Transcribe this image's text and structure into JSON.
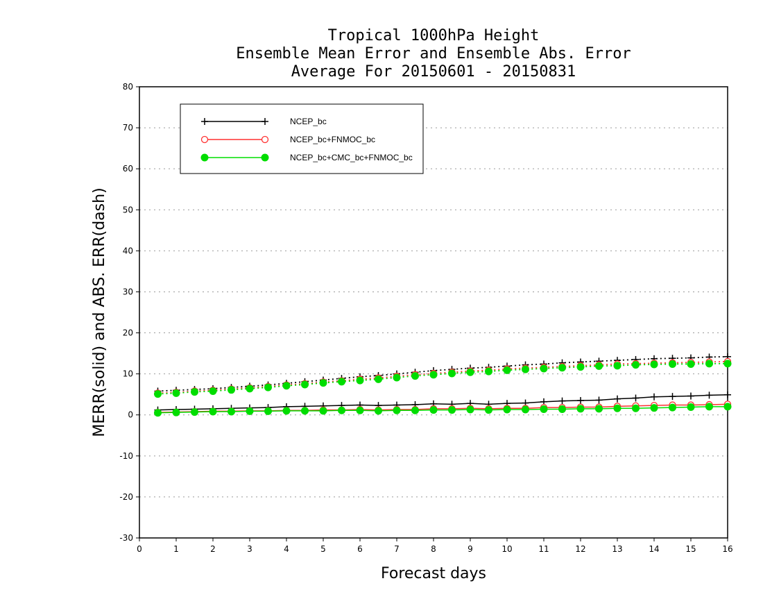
{
  "chart_data": {
    "type": "line",
    "title_lines": [
      "Tropical 1000hPa Height",
      "Ensemble Mean Error and Ensemble Abs. Error",
      "Average For 20150601 - 20150831"
    ],
    "xlabel": "Forecast days",
    "ylabel": "MERR(solid) and ABS. ERR(dash)",
    "xlim": [
      0,
      16
    ],
    "ylim": [
      -30,
      80
    ],
    "xticks": [
      "0",
      "1",
      "2",
      "3",
      "4",
      "5",
      "6",
      "7",
      "8",
      "9",
      "10",
      "11",
      "12",
      "13",
      "14",
      "15",
      "16"
    ],
    "yticks": [
      "80",
      "70",
      "60",
      "50",
      "40",
      "30",
      "20",
      "10",
      "0",
      "-10",
      "-20",
      "-30"
    ],
    "grid": "horizontal dotted",
    "legend_position": "top-left",
    "x": [
      0.5,
      1,
      1.5,
      2,
      2.5,
      3,
      3.5,
      4,
      4.5,
      5,
      5.5,
      6,
      6.5,
      7,
      7.5,
      8,
      8.5,
      9,
      9.5,
      10,
      10.5,
      11,
      11.5,
      12,
      12.5,
      13,
      13.5,
      14,
      14.5,
      15,
      15.5,
      16
    ],
    "series": [
      {
        "name": "NCEP_bc",
        "color": "#000000",
        "marker": "plus",
        "merr": [
          1.2,
          1.3,
          1.4,
          1.5,
          1.6,
          1.7,
          1.8,
          2.0,
          2.1,
          2.2,
          2.3,
          2.4,
          2.3,
          2.4,
          2.5,
          2.7,
          2.6,
          2.8,
          2.6,
          2.8,
          2.9,
          3.2,
          3.4,
          3.5,
          3.6,
          3.9,
          4.1,
          4.4,
          4.5,
          4.6,
          4.8,
          4.9
        ],
        "abs_err": [
          5.8,
          6.0,
          6.2,
          6.4,
          6.7,
          7.0,
          7.3,
          7.7,
          8.1,
          8.5,
          8.9,
          9.3,
          9.6,
          10.0,
          10.4,
          10.8,
          11.1,
          11.4,
          11.6,
          11.9,
          12.2,
          12.4,
          12.7,
          12.9,
          13.1,
          13.3,
          13.5,
          13.7,
          13.8,
          13.9,
          14.1,
          14.2
        ]
      },
      {
        "name": "NCEP_bc+FNMOC_bc",
        "color": "#ff3030",
        "marker": "open-circle",
        "merr": [
          0.6,
          0.7,
          0.8,
          0.9,
          0.9,
          1.0,
          1.0,
          1.1,
          1.1,
          1.2,
          1.2,
          1.3,
          1.2,
          1.3,
          1.3,
          1.5,
          1.5,
          1.6,
          1.5,
          1.6,
          1.6,
          1.8,
          1.8,
          1.9,
          1.9,
          2.1,
          2.2,
          2.3,
          2.4,
          2.4,
          2.5,
          2.6
        ],
        "abs_err": [
          5.3,
          5.5,
          5.8,
          6.0,
          6.3,
          6.6,
          6.9,
          7.3,
          7.6,
          8.0,
          8.3,
          8.7,
          9.0,
          9.4,
          9.8,
          10.1,
          10.4,
          10.7,
          10.9,
          11.2,
          11.4,
          11.6,
          11.8,
          12.0,
          12.2,
          12.4,
          12.5,
          12.6,
          12.7,
          12.8,
          12.9,
          13.0
        ]
      },
      {
        "name": "NCEP_bc+CMC_bc+FNMOC_bc",
        "color": "#00dd00",
        "marker": "filled-circle",
        "merr": [
          0.5,
          0.6,
          0.7,
          0.8,
          0.8,
          0.9,
          0.9,
          1.0,
          1.0,
          1.0,
          1.1,
          1.1,
          1.0,
          1.1,
          1.1,
          1.2,
          1.2,
          1.3,
          1.2,
          1.3,
          1.3,
          1.4,
          1.4,
          1.5,
          1.5,
          1.6,
          1.6,
          1.7,
          1.8,
          1.9,
          2.0,
          2.0
        ],
        "abs_err": [
          5.1,
          5.3,
          5.6,
          5.8,
          6.1,
          6.4,
          6.7,
          7.1,
          7.4,
          7.8,
          8.1,
          8.4,
          8.7,
          9.1,
          9.5,
          9.8,
          10.1,
          10.4,
          10.6,
          10.9,
          11.1,
          11.3,
          11.5,
          11.7,
          11.9,
          12.0,
          12.2,
          12.3,
          12.4,
          12.4,
          12.5,
          12.5
        ]
      }
    ]
  }
}
